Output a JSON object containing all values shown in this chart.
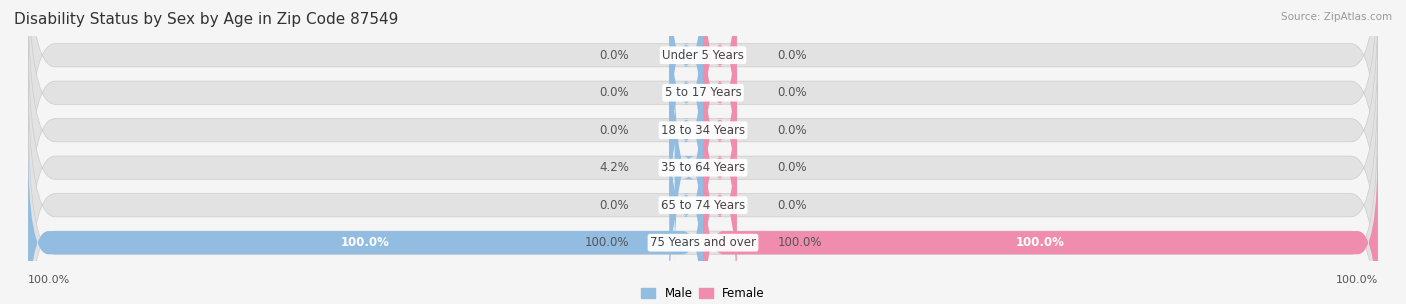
{
  "title": "Disability Status by Sex by Age in Zip Code 87549",
  "source": "Source: ZipAtlas.com",
  "categories": [
    "Under 5 Years",
    "5 to 17 Years",
    "18 to 34 Years",
    "35 to 64 Years",
    "65 to 74 Years",
    "75 Years and over"
  ],
  "male_values": [
    0.0,
    0.0,
    0.0,
    4.2,
    0.0,
    100.0
  ],
  "female_values": [
    0.0,
    0.0,
    0.0,
    0.0,
    0.0,
    100.0
  ],
  "male_color": "#92BCE0",
  "female_color": "#F08DAE",
  "bg_bar_color": "#E2E2E2",
  "background_color": "#F5F5F5",
  "bar_height": 0.62,
  "max_value": 100.0,
  "title_fontsize": 11,
  "label_fontsize": 8.5,
  "category_fontsize": 8.5,
  "stub_size": 5.0
}
